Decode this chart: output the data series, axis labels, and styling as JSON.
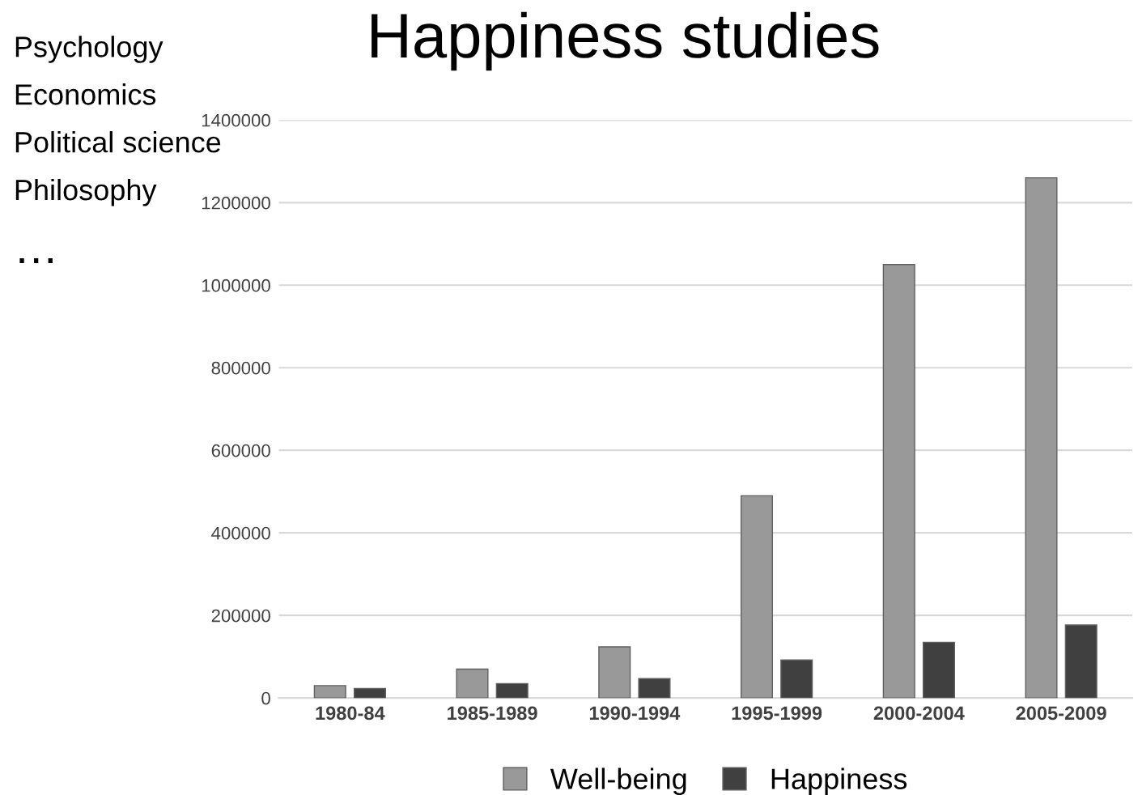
{
  "chart_data": {
    "type": "bar",
    "title": "Happiness studies",
    "categories": [
      "1980-84",
      "1985-1989",
      "1990-1994",
      "1995-1999",
      "2000-2004",
      "2005-2009"
    ],
    "series": [
      {
        "name": "Well-being",
        "color": "#999999",
        "values": [
          30000,
          70000,
          124000,
          490000,
          1050000,
          1260000
        ]
      },
      {
        "name": "Happiness",
        "color": "#404040",
        "values": [
          23000,
          35000,
          47000,
          92000,
          135000,
          177000
        ]
      }
    ],
    "ylim": [
      0,
      1400000
    ],
    "yticks": [
      0,
      200000,
      400000,
      600000,
      800000,
      1000000,
      1200000,
      1400000
    ],
    "grid": "y",
    "legend": "bottom",
    "annotations": [
      "Psychology",
      "Economics",
      "Political science",
      "Philosophy",
      "…"
    ]
  }
}
